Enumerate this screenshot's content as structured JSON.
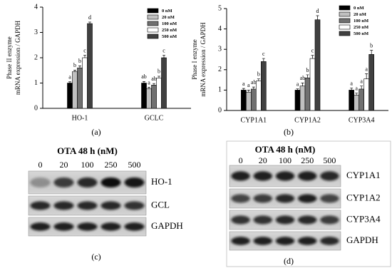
{
  "chart_data": [
    {
      "type": "bar",
      "caption": "(a)",
      "ylabel": [
        "Phase II enzyme",
        "mRNA expression / GAPDH"
      ],
      "categories": [
        "HO-1",
        "GCLC"
      ],
      "ylim": [
        0,
        4
      ],
      "yticks": [
        0,
        1,
        2,
        3,
        4
      ],
      "grid": false,
      "series": [
        {
          "name": "0 nM",
          "color": "#000000",
          "values": [
            1.0,
            1.0
          ],
          "errors": [
            0.05,
            0.06
          ],
          "letters": [
            "a",
            "ab"
          ]
        },
        {
          "name": "20 nM",
          "color": "#c0c0c0",
          "values": [
            1.45,
            0.78
          ],
          "errors": [
            0.06,
            0.05
          ],
          "letters": [
            "b",
            "a"
          ]
        },
        {
          "name": "100 nM",
          "color": "#707070",
          "values": [
            1.6,
            0.92
          ],
          "errors": [
            0.08,
            0.06
          ],
          "letters": [
            "b",
            "ab"
          ]
        },
        {
          "name": "250 nM",
          "color": "#ffffff",
          "values": [
            2.0,
            1.2
          ],
          "errors": [
            0.1,
            0.07
          ],
          "letters": [
            "c",
            "b"
          ]
        },
        {
          "name": "500 nM",
          "color": "#404040",
          "values": [
            3.35,
            2.0
          ],
          "errors": [
            0.06,
            0.1
          ],
          "letters": [
            "d",
            "c"
          ]
        }
      ]
    },
    {
      "type": "bar",
      "caption": "(b)",
      "ylabel": [
        "Phase I enzyme",
        "mRNA expression / GAPDH"
      ],
      "categories": [
        "CYP1A1",
        "CYP1A2",
        "CYP3A4"
      ],
      "ylim": [
        0,
        5
      ],
      "yticks": [
        0,
        1,
        2,
        3,
        4,
        5
      ],
      "grid": false,
      "series": [
        {
          "name": "0 nM",
          "color": "#000000",
          "values": [
            1.0,
            1.0,
            1.0
          ],
          "errors": [
            0.08,
            0.06,
            0.1
          ],
          "letters": [
            "a",
            "a",
            "a"
          ]
        },
        {
          "name": "20 nM",
          "color": "#c0c0c0",
          "values": [
            0.9,
            1.2,
            0.75
          ],
          "errors": [
            0.1,
            0.15,
            0.1
          ],
          "letters": [
            "a",
            "ab",
            "a"
          ]
        },
        {
          "name": "100 nM",
          "color": "#707070",
          "values": [
            1.05,
            1.6,
            1.05
          ],
          "errors": [
            0.1,
            0.15,
            0.15
          ],
          "letters": [
            "ab",
            "b",
            "a"
          ]
        },
        {
          "name": "250 nM",
          "color": "#ffffff",
          "values": [
            1.45,
            2.55,
            1.55
          ],
          "errors": [
            0.1,
            0.15,
            0.25
          ],
          "letters": [
            "b",
            "c",
            "a"
          ]
        },
        {
          "name": "500 nM",
          "color": "#404040",
          "values": [
            2.4,
            4.45,
            2.75
          ],
          "errors": [
            0.15,
            0.2,
            0.2
          ],
          "letters": [
            "c",
            "d",
            "b"
          ]
        }
      ]
    }
  ],
  "blots": [
    {
      "caption": "(c)",
      "title": "OTA 48 h (nM)",
      "lanes": [
        "0",
        "20",
        "100",
        "250",
        "500"
      ],
      "rows": [
        "HO-1",
        "GCL",
        "GAPDH"
      ]
    },
    {
      "caption": "(d)",
      "title": "OTA 48 h (nM)",
      "lanes": [
        "0",
        "20",
        "100",
        "250",
        "500"
      ],
      "rows": [
        "CYP1A1",
        "CYP1A2",
        "CYP3A4",
        "GAPDH"
      ]
    }
  ]
}
